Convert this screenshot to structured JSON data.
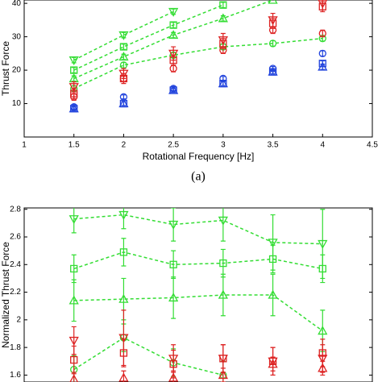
{
  "chart_data": [
    {
      "type": "scatter",
      "x_label": "Rotational Frequency [Hz]",
      "y_label": "Thrust Force",
      "caption": "(a)",
      "xlim": [
        1,
        4.5
      ],
      "xticks": [
        1,
        1.5,
        2,
        2.5,
        3,
        3.5,
        4,
        4.5
      ],
      "ylim": [
        0,
        41
      ],
      "yticks": [
        10,
        20,
        30,
        40
      ],
      "x": [
        1.5,
        2,
        2.5,
        3,
        3.5,
        4
      ],
      "series": [
        {
          "color": "#33dd33",
          "marker": "tri-down",
          "dashed": true,
          "values": [
            23,
            30.5,
            37.5,
            null,
            null,
            null
          ],
          "errors": [
            0.8,
            0.8,
            0.8,
            null,
            null,
            null
          ]
        },
        {
          "color": "#33dd33",
          "marker": "square",
          "dashed": true,
          "values": [
            20,
            27,
            33.5,
            39.5,
            null,
            null
          ],
          "errors": [
            0.8,
            0.8,
            0.8,
            0.8,
            null,
            null
          ]
        },
        {
          "color": "#33dd33",
          "marker": "tri-up",
          "dashed": true,
          "values": [
            17.5,
            24,
            30.5,
            35.5,
            41,
            null
          ],
          "errors": [
            0.8,
            0.8,
            0.8,
            0.8,
            null,
            null
          ]
        },
        {
          "color": "#33dd33",
          "marker": "circle",
          "dashed": true,
          "values": [
            14.5,
            21.5,
            24.5,
            27,
            28,
            29.5
          ],
          "errors": [
            0.8,
            0.8,
            0.8,
            0.8,
            0.8,
            0.8
          ]
        },
        {
          "color": "#dd2222",
          "marker": "tri-down",
          "dashed": false,
          "values": [
            15,
            19,
            25,
            29,
            35,
            40
          ],
          "errors": [
            1.5,
            1.5,
            2,
            2,
            2,
            2
          ]
        },
        {
          "color": "#dd2222",
          "marker": "square",
          "dashed": false,
          "values": [
            13,
            17.5,
            23,
            28,
            34,
            39
          ],
          "errors": [
            1.5,
            1.5,
            1.5,
            1.5,
            1.5,
            1.5
          ]
        },
        {
          "color": "#dd2222",
          "marker": "circle",
          "dashed": false,
          "values": [
            12,
            17.5,
            20.5,
            26,
            32,
            31
          ],
          "errors": [
            1,
            1,
            1,
            1,
            1,
            1
          ]
        },
        {
          "color": "#2244dd",
          "marker": "circle",
          "dashed": false,
          "values": [
            9,
            12,
            14.5,
            17.5,
            20.5,
            25
          ],
          "errors": [
            0.6,
            0.6,
            0.6,
            0.6,
            0.6,
            0.8
          ]
        },
        {
          "color": "#2244dd",
          "marker": "square",
          "dashed": false,
          "values": [
            8.5,
            10,
            14,
            16,
            19.5,
            22
          ],
          "errors": [
            0.6,
            0.6,
            0.6,
            0.6,
            0.6,
            0.8
          ]
        },
        {
          "color": "#2244dd",
          "marker": "tri-up",
          "dashed": false,
          "values": [
            8.5,
            10,
            14,
            16,
            19.5,
            21
          ],
          "errors": [
            0.6,
            0.6,
            0.6,
            0.6,
            0.6,
            0.8
          ]
        }
      ]
    },
    {
      "type": "scatter",
      "y_label": "Normalized Thrust Force",
      "xlim": [
        1,
        4.5
      ],
      "ylim": [
        1.55,
        2.81
      ],
      "yticks": [
        1.6,
        1.8,
        2,
        2.2,
        2.4,
        2.6,
        2.8
      ],
      "x": [
        1.5,
        2,
        2.5,
        3,
        3.5,
        4
      ],
      "series": [
        {
          "color": "#33dd33",
          "marker": "tri-down",
          "dashed": true,
          "values": [
            2.73,
            2.76,
            2.69,
            2.72,
            2.56,
            2.55
          ],
          "errors": [
            0.1,
            0.1,
            0.12,
            0.15,
            0.2,
            0.25
          ]
        },
        {
          "color": "#33dd33",
          "marker": "square",
          "dashed": true,
          "values": [
            2.37,
            2.49,
            2.4,
            2.41,
            2.44,
            2.37
          ],
          "errors": [
            0.1,
            0.1,
            0.1,
            0.1,
            0.1,
            0.1
          ]
        },
        {
          "color": "#33dd33",
          "marker": "tri-up",
          "dashed": true,
          "values": [
            2.14,
            2.15,
            2.16,
            2.18,
            2.18,
            1.92
          ],
          "errors": [
            0.15,
            0.15,
            0.15,
            0.15,
            0.15,
            0.15
          ]
        },
        {
          "color": "#33dd33",
          "marker": "circle",
          "dashed": true,
          "values": [
            1.64,
            1.87,
            1.69,
            1.6,
            null,
            null
          ],
          "errors": [
            0.1,
            0.1,
            0.1,
            0.1,
            null,
            null
          ]
        },
        {
          "color": "#dd2222",
          "marker": "tri-down",
          "dashed": false,
          "values": [
            1.85,
            1.87,
            1.72,
            1.72,
            1.7,
            1.72
          ],
          "errors": [
            0.1,
            0.2,
            0.1,
            0.1,
            0.1,
            0.1
          ]
        },
        {
          "color": "#dd2222",
          "marker": "square",
          "dashed": false,
          "values": [
            1.71,
            1.76,
            1.68,
            1.72,
            1.7,
            1.76
          ],
          "errors": [
            0.1,
            0.1,
            0.1,
            0.1,
            0.1,
            0.1
          ]
        },
        {
          "color": "#dd2222",
          "marker": "tri-up",
          "dashed": false,
          "values": [
            1.57,
            1.58,
            1.58,
            1.6,
            1.68,
            1.65
          ],
          "errors": [
            0.05,
            0.05,
            0.05,
            0.05,
            0.05,
            0.05
          ]
        }
      ]
    }
  ]
}
